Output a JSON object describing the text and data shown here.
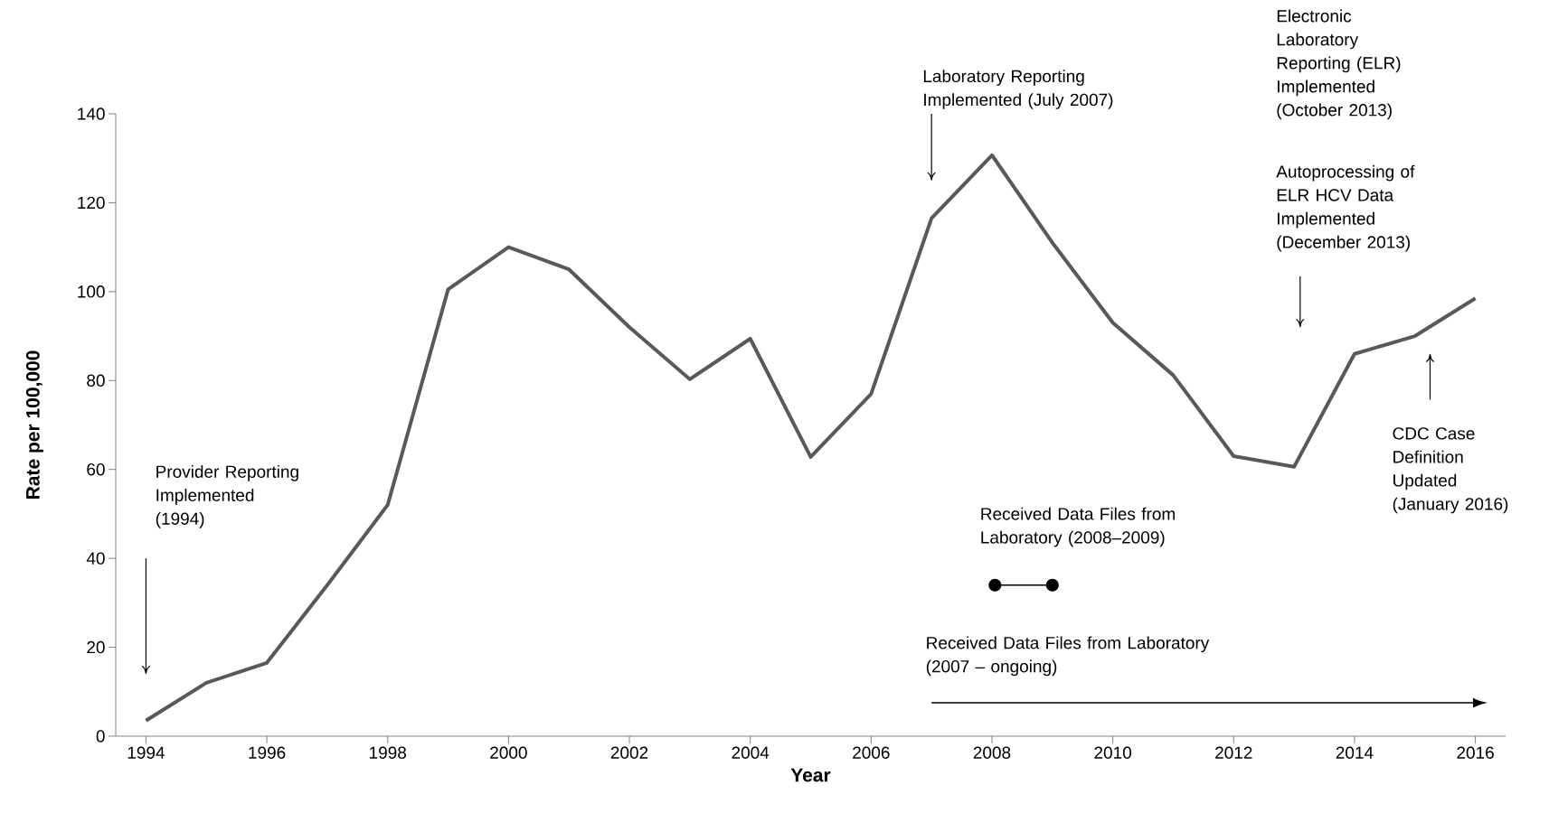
{
  "chart_data": {
    "type": "line",
    "xlabel": "Year",
    "ylabel": "Rate per 100,000",
    "x": [
      1994,
      1995,
      1996,
      1997,
      1998,
      1999,
      2000,
      2001,
      2002,
      2003,
      2004,
      2005,
      2006,
      2007,
      2008,
      2009,
      2010,
      2011,
      2012,
      2013,
      2014,
      2015,
      2016
    ],
    "series": [
      {
        "color": "#595959",
        "values": [
          3.5,
          12,
          16.5,
          34,
          52,
          100.5,
          110,
          105,
          92,
          80.3,
          89.4,
          62.8,
          77,
          116.5,
          130.7,
          111,
          93,
          81.2,
          63,
          60.6,
          86,
          90,
          98.5
        ]
      }
    ],
    "marker": "none",
    "line_style": "solid",
    "xlim": [
      1993.5,
      2016.5
    ],
    "ylim": [
      0,
      140
    ],
    "xticks": [
      1994,
      1996,
      1998,
      2000,
      2002,
      2004,
      2006,
      2008,
      2010,
      2012,
      2014,
      2016
    ],
    "yticks": [
      0,
      20,
      40,
      60,
      80,
      100,
      120,
      140
    ],
    "annotations": [
      "Provider Reporting Implemented (1994)",
      "Laboratory Reporting Implemented (July 2007)",
      "Electronic Laboratory Reporting (ELR) Implemented (October 2013)",
      "Autoprocessing of ELR HCV Data Implemented (December 2013)",
      "CDC Case Definition Updated (January 2016)",
      "Received Data Files from Laboratory (2008–2009)",
      "Received Data Files from Laboratory (2007 – ongoing)"
    ]
  }
}
